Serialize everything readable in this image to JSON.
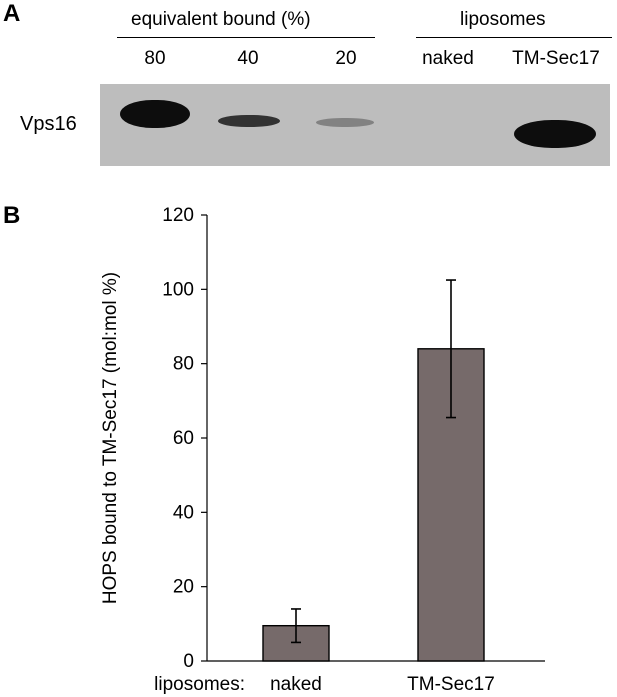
{
  "panel_a": {
    "letter": "A",
    "header_left": "equivalent bound (%)",
    "header_right": "liposomes",
    "lanes": [
      "80",
      "40",
      "20",
      "naked",
      "TM-Sec17"
    ],
    "row_label": "Vps16",
    "band_intensities": [
      1.0,
      0.45,
      0.2,
      0.0,
      1.0
    ]
  },
  "panel_b": {
    "letter": "B"
  },
  "chart_data": {
    "type": "bar",
    "categories": [
      "naked",
      "TM-Sec17"
    ],
    "values": [
      9.5,
      84
    ],
    "errors": [
      4.5,
      18.5
    ],
    "title": "",
    "category_axis_prefix": "liposomes:",
    "xlabel": "",
    "ylabel": "HOPS bound to TM-Sec17 (mol:mol %)",
    "ylim": [
      0,
      120
    ],
    "yticks": [
      0,
      20,
      40,
      60,
      80,
      100,
      120
    ],
    "grid": false,
    "bar_color": "#766a6a"
  }
}
